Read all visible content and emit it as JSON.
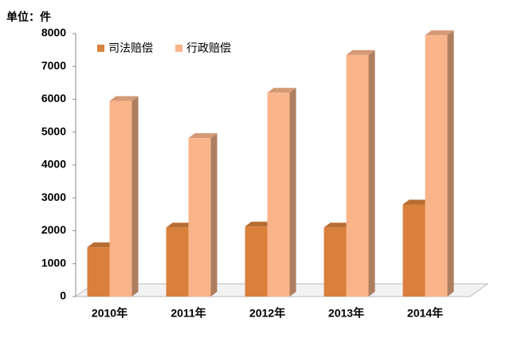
{
  "chart_data": {
    "type": "bar3d",
    "unit_label": "单位：件",
    "categories": [
      "2010年",
      "2011年",
      "2012年",
      "2013年",
      "2014年"
    ],
    "series": [
      {
        "name": "司法赔偿",
        "color": "#d9803c",
        "values": [
          1500,
          2100,
          2130,
          2100,
          2800
        ]
      },
      {
        "name": "行政赔偿",
        "color": "#f9b48a",
        "values": [
          5950,
          4820,
          6200,
          7350,
          7950
        ]
      }
    ],
    "ylim": [
      0,
      8000
    ],
    "yticks": [
      0,
      1000,
      2000,
      3000,
      4000,
      5000,
      6000,
      7000,
      8000
    ],
    "legend": "top-left"
  }
}
